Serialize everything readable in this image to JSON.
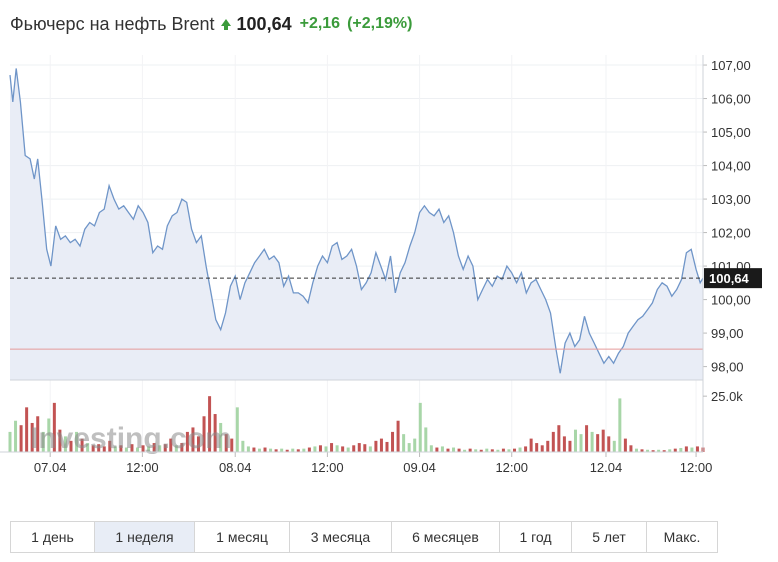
{
  "header": {
    "title": "Фьючерс на нефть Brent",
    "price": "100,64",
    "change": "+2,16",
    "change_pct": "(+2,19%)",
    "up_color": "#3b9b3b"
  },
  "watermark": "Investing.com",
  "ranges": [
    {
      "label": "1 день",
      "active": false
    },
    {
      "label": "1 неделя",
      "active": true
    },
    {
      "label": "1 месяц",
      "active": false
    },
    {
      "label": "3 месяца",
      "active": false
    },
    {
      "label": "6 месяцев",
      "active": false
    },
    {
      "label": "1 год",
      "active": false
    },
    {
      "label": "5 лет",
      "active": false
    },
    {
      "label": "Макс.",
      "active": false
    }
  ],
  "chart_data": {
    "type": "area",
    "ylim": [
      97.6,
      107.3
    ],
    "yticks": [
      107,
      106,
      105,
      104,
      103,
      102,
      101,
      100,
      99,
      98
    ],
    "ytick_labels": [
      "107,00",
      "106,00",
      "105,00",
      "104,00",
      "103,00",
      "102,00",
      "101,00",
      "100,00",
      "99,00",
      "98,00"
    ],
    "xlim": [
      0,
      100
    ],
    "xticks": [
      {
        "x": 5.8,
        "label": "07.04"
      },
      {
        "x": 19.1,
        "label": "12:00"
      },
      {
        "x": 32.5,
        "label": "08.04"
      },
      {
        "x": 45.8,
        "label": "12:00"
      },
      {
        "x": 59.1,
        "label": "09.04"
      },
      {
        "x": 72.4,
        "label": "12:00"
      },
      {
        "x": 86.0,
        "label": "12.04"
      },
      {
        "x": 99.0,
        "label": "12:00"
      }
    ],
    "current_value": 100.64,
    "current_label": "100,64",
    "reference_value": 98.52,
    "line_color": "#6f95c8",
    "fill_color": "#e9edf6",
    "reference_color": "#e59a9a",
    "volume_up_color": "#a8d6a8",
    "volume_down_color": "#c25353",
    "volume_max": 30000,
    "volume_tick_value": 25000,
    "volume_tick_label": "25.0k",
    "series": [
      {
        "x": 0.0,
        "y": 106.7
      },
      {
        "x": 0.4,
        "y": 105.9
      },
      {
        "x": 0.9,
        "y": 106.9
      },
      {
        "x": 1.5,
        "y": 105.9
      },
      {
        "x": 2.2,
        "y": 104.3
      },
      {
        "x": 2.9,
        "y": 104.2
      },
      {
        "x": 3.5,
        "y": 103.6
      },
      {
        "x": 4.0,
        "y": 104.2
      },
      {
        "x": 4.6,
        "y": 103.0
      },
      {
        "x": 5.3,
        "y": 101.5
      },
      {
        "x": 5.9,
        "y": 101.0
      },
      {
        "x": 6.6,
        "y": 102.2
      },
      {
        "x": 7.3,
        "y": 101.8
      },
      {
        "x": 8.0,
        "y": 101.9
      },
      {
        "x": 8.7,
        "y": 101.7
      },
      {
        "x": 9.4,
        "y": 101.8
      },
      {
        "x": 10.1,
        "y": 101.6
      },
      {
        "x": 10.8,
        "y": 102.1
      },
      {
        "x": 11.5,
        "y": 102.3
      },
      {
        "x": 12.2,
        "y": 102.2
      },
      {
        "x": 12.9,
        "y": 102.6
      },
      {
        "x": 13.6,
        "y": 102.7
      },
      {
        "x": 14.3,
        "y": 103.4
      },
      {
        "x": 15.0,
        "y": 103.0
      },
      {
        "x": 15.7,
        "y": 102.7
      },
      {
        "x": 16.4,
        "y": 102.8
      },
      {
        "x": 17.1,
        "y": 102.6
      },
      {
        "x": 17.8,
        "y": 102.4
      },
      {
        "x": 18.5,
        "y": 102.8
      },
      {
        "x": 19.2,
        "y": 102.6
      },
      {
        "x": 19.9,
        "y": 102.3
      },
      {
        "x": 20.6,
        "y": 101.4
      },
      {
        "x": 21.3,
        "y": 101.6
      },
      {
        "x": 22.0,
        "y": 101.5
      },
      {
        "x": 22.7,
        "y": 102.2
      },
      {
        "x": 23.4,
        "y": 102.5
      },
      {
        "x": 24.1,
        "y": 102.6
      },
      {
        "x": 24.8,
        "y": 103.0
      },
      {
        "x": 25.5,
        "y": 102.9
      },
      {
        "x": 26.2,
        "y": 102.1
      },
      {
        "x": 26.9,
        "y": 101.7
      },
      {
        "x": 27.6,
        "y": 101.9
      },
      {
        "x": 28.3,
        "y": 101.0
      },
      {
        "x": 29.0,
        "y": 100.2
      },
      {
        "x": 29.7,
        "y": 99.4
      },
      {
        "x": 30.4,
        "y": 99.1
      },
      {
        "x": 31.1,
        "y": 99.6
      },
      {
        "x": 31.8,
        "y": 100.4
      },
      {
        "x": 32.5,
        "y": 100.7
      },
      {
        "x": 33.2,
        "y": 100.0
      },
      {
        "x": 33.9,
        "y": 100.5
      },
      {
        "x": 34.6,
        "y": 100.8
      },
      {
        "x": 35.3,
        "y": 101.1
      },
      {
        "x": 36.0,
        "y": 101.3
      },
      {
        "x": 36.7,
        "y": 101.5
      },
      {
        "x": 37.4,
        "y": 101.2
      },
      {
        "x": 38.1,
        "y": 101.3
      },
      {
        "x": 38.8,
        "y": 101.1
      },
      {
        "x": 39.5,
        "y": 100.4
      },
      {
        "x": 40.2,
        "y": 100.7
      },
      {
        "x": 40.9,
        "y": 100.2
      },
      {
        "x": 41.6,
        "y": 100.2
      },
      {
        "x": 42.3,
        "y": 100.1
      },
      {
        "x": 43.0,
        "y": 99.9
      },
      {
        "x": 43.7,
        "y": 100.5
      },
      {
        "x": 44.4,
        "y": 101.0
      },
      {
        "x": 45.1,
        "y": 101.3
      },
      {
        "x": 45.8,
        "y": 101.1
      },
      {
        "x": 46.5,
        "y": 101.6
      },
      {
        "x": 47.2,
        "y": 101.7
      },
      {
        "x": 47.9,
        "y": 101.2
      },
      {
        "x": 48.6,
        "y": 101.3
      },
      {
        "x": 49.3,
        "y": 101.5
      },
      {
        "x": 50.0,
        "y": 101.0
      },
      {
        "x": 50.7,
        "y": 100.3
      },
      {
        "x": 51.4,
        "y": 100.5
      },
      {
        "x": 52.1,
        "y": 100.8
      },
      {
        "x": 52.8,
        "y": 101.4
      },
      {
        "x": 53.5,
        "y": 101.0
      },
      {
        "x": 54.2,
        "y": 100.6
      },
      {
        "x": 54.9,
        "y": 101.3
      },
      {
        "x": 55.6,
        "y": 100.2
      },
      {
        "x": 56.3,
        "y": 100.8
      },
      {
        "x": 57.0,
        "y": 101.1
      },
      {
        "x": 57.7,
        "y": 101.6
      },
      {
        "x": 58.4,
        "y": 102.0
      },
      {
        "x": 59.1,
        "y": 102.6
      },
      {
        "x": 59.8,
        "y": 102.8
      },
      {
        "x": 60.5,
        "y": 102.6
      },
      {
        "x": 61.2,
        "y": 102.5
      },
      {
        "x": 61.9,
        "y": 102.7
      },
      {
        "x": 62.6,
        "y": 102.3
      },
      {
        "x": 63.3,
        "y": 102.5
      },
      {
        "x": 64.0,
        "y": 102.0
      },
      {
        "x": 64.7,
        "y": 101.3
      },
      {
        "x": 65.4,
        "y": 100.9
      },
      {
        "x": 66.1,
        "y": 101.3
      },
      {
        "x": 66.8,
        "y": 101.0
      },
      {
        "x": 67.5,
        "y": 100.0
      },
      {
        "x": 68.2,
        "y": 100.3
      },
      {
        "x": 68.9,
        "y": 100.6
      },
      {
        "x": 69.6,
        "y": 100.4
      },
      {
        "x": 70.3,
        "y": 100.7
      },
      {
        "x": 71.0,
        "y": 100.6
      },
      {
        "x": 71.7,
        "y": 101.0
      },
      {
        "x": 72.4,
        "y": 100.8
      },
      {
        "x": 73.1,
        "y": 100.5
      },
      {
        "x": 73.8,
        "y": 100.8
      },
      {
        "x": 74.5,
        "y": 100.2
      },
      {
        "x": 75.2,
        "y": 100.5
      },
      {
        "x": 75.9,
        "y": 100.6
      },
      {
        "x": 76.6,
        "y": 100.3
      },
      {
        "x": 77.3,
        "y": 100.0
      },
      {
        "x": 78.0,
        "y": 99.6
      },
      {
        "x": 78.8,
        "y": 98.5
      },
      {
        "x": 79.4,
        "y": 97.8
      },
      {
        "x": 80.1,
        "y": 98.7
      },
      {
        "x": 80.8,
        "y": 99.0
      },
      {
        "x": 81.5,
        "y": 98.6
      },
      {
        "x": 82.2,
        "y": 98.8
      },
      {
        "x": 82.9,
        "y": 99.5
      },
      {
        "x": 83.6,
        "y": 99.0
      },
      {
        "x": 84.3,
        "y": 98.7
      },
      {
        "x": 85.0,
        "y": 98.4
      },
      {
        "x": 85.7,
        "y": 98.1
      },
      {
        "x": 86.4,
        "y": 98.3
      },
      {
        "x": 87.1,
        "y": 98.1
      },
      {
        "x": 87.8,
        "y": 98.4
      },
      {
        "x": 88.5,
        "y": 98.6
      },
      {
        "x": 89.2,
        "y": 99.0
      },
      {
        "x": 89.9,
        "y": 99.2
      },
      {
        "x": 90.6,
        "y": 99.4
      },
      {
        "x": 91.3,
        "y": 99.5
      },
      {
        "x": 92.0,
        "y": 99.7
      },
      {
        "x": 92.7,
        "y": 99.9
      },
      {
        "x": 93.4,
        "y": 100.3
      },
      {
        "x": 94.1,
        "y": 100.5
      },
      {
        "x": 94.8,
        "y": 100.4
      },
      {
        "x": 95.5,
        "y": 100.1
      },
      {
        "x": 96.2,
        "y": 100.3
      },
      {
        "x": 96.9,
        "y": 100.6
      },
      {
        "x": 97.6,
        "y": 101.4
      },
      {
        "x": 98.3,
        "y": 101.5
      },
      {
        "x": 99.0,
        "y": 100.9
      },
      {
        "x": 99.6,
        "y": 100.5
      },
      {
        "x": 100.0,
        "y": 100.64
      }
    ],
    "volume": [
      {
        "x": 0.0,
        "v": 9000,
        "dir": "up"
      },
      {
        "x": 0.8,
        "v": 14000,
        "dir": "up"
      },
      {
        "x": 1.6,
        "v": 12000,
        "dir": "down"
      },
      {
        "x": 2.4,
        "v": 20000,
        "dir": "down"
      },
      {
        "x": 3.2,
        "v": 13000,
        "dir": "down"
      },
      {
        "x": 4.0,
        "v": 16000,
        "dir": "down"
      },
      {
        "x": 4.8,
        "v": 9000,
        "dir": "up"
      },
      {
        "x": 5.6,
        "v": 15000,
        "dir": "up"
      },
      {
        "x": 6.4,
        "v": 22000,
        "dir": "down"
      },
      {
        "x": 7.2,
        "v": 10000,
        "dir": "down"
      },
      {
        "x": 8.0,
        "v": 7000,
        "dir": "up"
      },
      {
        "x": 8.8,
        "v": 5000,
        "dir": "down"
      },
      {
        "x": 9.6,
        "v": 9000,
        "dir": "up"
      },
      {
        "x": 10.4,
        "v": 6000,
        "dir": "down"
      },
      {
        "x": 11.2,
        "v": 4000,
        "dir": "up"
      },
      {
        "x": 12.0,
        "v": 3000,
        "dir": "down"
      },
      {
        "x": 12.8,
        "v": 3500,
        "dir": "down"
      },
      {
        "x": 13.6,
        "v": 2500,
        "dir": "down"
      },
      {
        "x": 14.4,
        "v": 5000,
        "dir": "down"
      },
      {
        "x": 15.2,
        "v": 2500,
        "dir": "up"
      },
      {
        "x": 16.0,
        "v": 3000,
        "dir": "down"
      },
      {
        "x": 16.8,
        "v": 2000,
        "dir": "up"
      },
      {
        "x": 17.6,
        "v": 3500,
        "dir": "down"
      },
      {
        "x": 18.4,
        "v": 2000,
        "dir": "up"
      },
      {
        "x": 19.2,
        "v": 3000,
        "dir": "down"
      },
      {
        "x": 20.0,
        "v": 2500,
        "dir": "up"
      },
      {
        "x": 20.8,
        "v": 4000,
        "dir": "down"
      },
      {
        "x": 21.6,
        "v": 3000,
        "dir": "up"
      },
      {
        "x": 22.4,
        "v": 3500,
        "dir": "down"
      },
      {
        "x": 23.2,
        "v": 6000,
        "dir": "down"
      },
      {
        "x": 24.0,
        "v": 3000,
        "dir": "up"
      },
      {
        "x": 24.8,
        "v": 4000,
        "dir": "down"
      },
      {
        "x": 25.6,
        "v": 9000,
        "dir": "down"
      },
      {
        "x": 26.4,
        "v": 11000,
        "dir": "down"
      },
      {
        "x": 27.2,
        "v": 7000,
        "dir": "down"
      },
      {
        "x": 28.0,
        "v": 16000,
        "dir": "down"
      },
      {
        "x": 28.8,
        "v": 25000,
        "dir": "down"
      },
      {
        "x": 29.6,
        "v": 17000,
        "dir": "down"
      },
      {
        "x": 30.4,
        "v": 13000,
        "dir": "up"
      },
      {
        "x": 31.2,
        "v": 8000,
        "dir": "down"
      },
      {
        "x": 32.0,
        "v": 6000,
        "dir": "down"
      },
      {
        "x": 32.8,
        "v": 20000,
        "dir": "up"
      },
      {
        "x": 33.6,
        "v": 5000,
        "dir": "up"
      },
      {
        "x": 34.4,
        "v": 2500,
        "dir": "up"
      },
      {
        "x": 35.2,
        "v": 2000,
        "dir": "down"
      },
      {
        "x": 36.0,
        "v": 1500,
        "dir": "up"
      },
      {
        "x": 36.8,
        "v": 2000,
        "dir": "down"
      },
      {
        "x": 37.6,
        "v": 1500,
        "dir": "up"
      },
      {
        "x": 38.4,
        "v": 1200,
        "dir": "down"
      },
      {
        "x": 39.2,
        "v": 1500,
        "dir": "up"
      },
      {
        "x": 40.0,
        "v": 1000,
        "dir": "down"
      },
      {
        "x": 40.8,
        "v": 1500,
        "dir": "up"
      },
      {
        "x": 41.6,
        "v": 1200,
        "dir": "down"
      },
      {
        "x": 42.4,
        "v": 1500,
        "dir": "up"
      },
      {
        "x": 43.2,
        "v": 2000,
        "dir": "down"
      },
      {
        "x": 44.0,
        "v": 2500,
        "dir": "up"
      },
      {
        "x": 44.8,
        "v": 3000,
        "dir": "down"
      },
      {
        "x": 45.6,
        "v": 2500,
        "dir": "up"
      },
      {
        "x": 46.4,
        "v": 4000,
        "dir": "down"
      },
      {
        "x": 47.2,
        "v": 3000,
        "dir": "up"
      },
      {
        "x": 48.0,
        "v": 2500,
        "dir": "down"
      },
      {
        "x": 48.8,
        "v": 2000,
        "dir": "up"
      },
      {
        "x": 49.6,
        "v": 3000,
        "dir": "down"
      },
      {
        "x": 50.4,
        "v": 4000,
        "dir": "down"
      },
      {
        "x": 51.2,
        "v": 3500,
        "dir": "down"
      },
      {
        "x": 52.0,
        "v": 2500,
        "dir": "up"
      },
      {
        "x": 52.8,
        "v": 5000,
        "dir": "down"
      },
      {
        "x": 53.6,
        "v": 6000,
        "dir": "down"
      },
      {
        "x": 54.4,
        "v": 4500,
        "dir": "down"
      },
      {
        "x": 55.2,
        "v": 9000,
        "dir": "down"
      },
      {
        "x": 56.0,
        "v": 14000,
        "dir": "down"
      },
      {
        "x": 56.8,
        "v": 8000,
        "dir": "up"
      },
      {
        "x": 57.6,
        "v": 4000,
        "dir": "up"
      },
      {
        "x": 58.4,
        "v": 6000,
        "dir": "up"
      },
      {
        "x": 59.2,
        "v": 22000,
        "dir": "up"
      },
      {
        "x": 60.0,
        "v": 11000,
        "dir": "up"
      },
      {
        "x": 60.8,
        "v": 3000,
        "dir": "up"
      },
      {
        "x": 61.6,
        "v": 2000,
        "dir": "down"
      },
      {
        "x": 62.4,
        "v": 2500,
        "dir": "up"
      },
      {
        "x": 63.2,
        "v": 1500,
        "dir": "down"
      },
      {
        "x": 64.0,
        "v": 2000,
        "dir": "up"
      },
      {
        "x": 64.8,
        "v": 1500,
        "dir": "down"
      },
      {
        "x": 65.6,
        "v": 1000,
        "dir": "up"
      },
      {
        "x": 66.4,
        "v": 1500,
        "dir": "down"
      },
      {
        "x": 67.2,
        "v": 1200,
        "dir": "up"
      },
      {
        "x": 68.0,
        "v": 1000,
        "dir": "down"
      },
      {
        "x": 68.8,
        "v": 1500,
        "dir": "up"
      },
      {
        "x": 69.6,
        "v": 1200,
        "dir": "down"
      },
      {
        "x": 70.4,
        "v": 1000,
        "dir": "up"
      },
      {
        "x": 71.2,
        "v": 1500,
        "dir": "down"
      },
      {
        "x": 72.0,
        "v": 1200,
        "dir": "up"
      },
      {
        "x": 72.8,
        "v": 1500,
        "dir": "down"
      },
      {
        "x": 73.6,
        "v": 2000,
        "dir": "up"
      },
      {
        "x": 74.4,
        "v": 2500,
        "dir": "down"
      },
      {
        "x": 75.2,
        "v": 6000,
        "dir": "down"
      },
      {
        "x": 76.0,
        "v": 4000,
        "dir": "down"
      },
      {
        "x": 76.8,
        "v": 3000,
        "dir": "down"
      },
      {
        "x": 77.6,
        "v": 5000,
        "dir": "down"
      },
      {
        "x": 78.4,
        "v": 9000,
        "dir": "down"
      },
      {
        "x": 79.2,
        "v": 12000,
        "dir": "down"
      },
      {
        "x": 80.0,
        "v": 7000,
        "dir": "down"
      },
      {
        "x": 80.8,
        "v": 5000,
        "dir": "down"
      },
      {
        "x": 81.6,
        "v": 10000,
        "dir": "up"
      },
      {
        "x": 82.4,
        "v": 8000,
        "dir": "up"
      },
      {
        "x": 83.2,
        "v": 12000,
        "dir": "down"
      },
      {
        "x": 84.0,
        "v": 9000,
        "dir": "up"
      },
      {
        "x": 84.8,
        "v": 8000,
        "dir": "down"
      },
      {
        "x": 85.6,
        "v": 10000,
        "dir": "down"
      },
      {
        "x": 86.4,
        "v": 7000,
        "dir": "down"
      },
      {
        "x": 87.2,
        "v": 5000,
        "dir": "up"
      },
      {
        "x": 88.0,
        "v": 24000,
        "dir": "up"
      },
      {
        "x": 88.8,
        "v": 6000,
        "dir": "down"
      },
      {
        "x": 89.6,
        "v": 3000,
        "dir": "down"
      },
      {
        "x": 90.4,
        "v": 1500,
        "dir": "up"
      },
      {
        "x": 91.2,
        "v": 1200,
        "dir": "down"
      },
      {
        "x": 92.0,
        "v": 1000,
        "dir": "up"
      },
      {
        "x": 92.8,
        "v": 800,
        "dir": "down"
      },
      {
        "x": 93.6,
        "v": 1000,
        "dir": "up"
      },
      {
        "x": 94.4,
        "v": 800,
        "dir": "down"
      },
      {
        "x": 95.2,
        "v": 1200,
        "dir": "up"
      },
      {
        "x": 96.0,
        "v": 1500,
        "dir": "down"
      },
      {
        "x": 96.8,
        "v": 1800,
        "dir": "up"
      },
      {
        "x": 97.6,
        "v": 2500,
        "dir": "down"
      },
      {
        "x": 98.4,
        "v": 2000,
        "dir": "up"
      },
      {
        "x": 99.2,
        "v": 2500,
        "dir": "down"
      },
      {
        "x": 100.0,
        "v": 2000,
        "dir": "down"
      }
    ]
  }
}
